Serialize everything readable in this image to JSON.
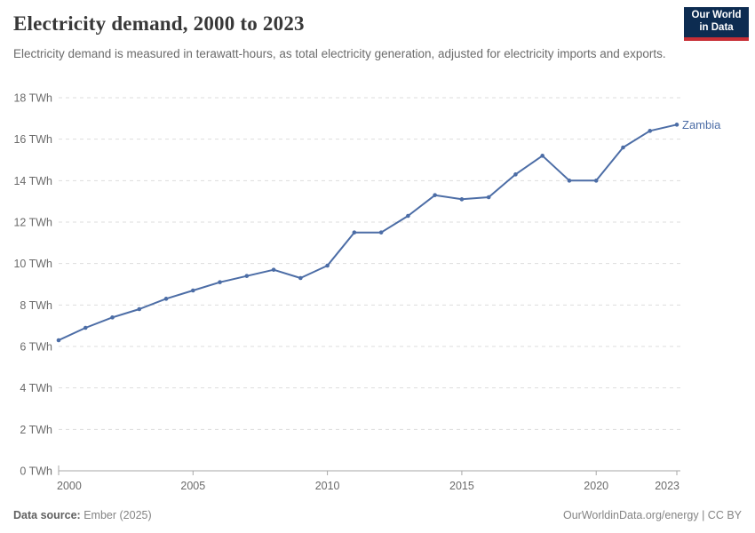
{
  "header": {
    "title": "Electricity demand, 2000 to 2023",
    "subtitle": "Electricity demand is measured in terawatt-hours, as total electricity generation, adjusted for electricity imports and exports.",
    "logo": {
      "line1": "Our World",
      "line2": "in Data",
      "bg_color": "#0d2c51",
      "accent_color": "#c72e35"
    }
  },
  "chart_data": {
    "type": "line",
    "title": "Electricity demand, 2000 to 2023",
    "unit": "TWh",
    "x": [
      2000,
      2001,
      2002,
      2003,
      2004,
      2005,
      2006,
      2007,
      2008,
      2009,
      2010,
      2011,
      2012,
      2013,
      2014,
      2015,
      2016,
      2017,
      2018,
      2019,
      2020,
      2021,
      2022,
      2023
    ],
    "series": [
      {
        "name": "Zambia",
        "color": "#4c6da6",
        "values": [
          6.3,
          6.9,
          7.4,
          7.8,
          8.3,
          8.7,
          9.1,
          9.4,
          9.7,
          9.3,
          9.9,
          11.5,
          11.5,
          12.3,
          13.3,
          13.1,
          13.2,
          14.3,
          15.2,
          14.0,
          14.0,
          15.6,
          16.4,
          16.7
        ]
      }
    ],
    "xlim": [
      2000,
      2023
    ],
    "ylim": [
      0,
      18
    ],
    "xticks": [
      2000,
      2005,
      2010,
      2015,
      2020,
      2023
    ],
    "xtick_labels": [
      "2000",
      "2005",
      "2010",
      "2015",
      "2020",
      "2023"
    ],
    "yticks": [
      0,
      2,
      4,
      6,
      8,
      10,
      12,
      14,
      16,
      18
    ],
    "ytick_labels": [
      "0 TWh",
      "2 TWh",
      "4 TWh",
      "6 TWh",
      "8 TWh",
      "10 TWh",
      "12 TWh",
      "14 TWh",
      "16 TWh",
      "18 TWh"
    ],
    "grid": "horizontal-dashed",
    "grid_color": "#dddddd",
    "axis_color": "#a7a7a7",
    "tick_label_color": "#6b6b6b",
    "legend_position": "end-of-line-label"
  },
  "footer": {
    "source_label": "Data source:",
    "source_value": "Ember (2025)",
    "credit": "OurWorldinData.org/energy | CC BY"
  }
}
